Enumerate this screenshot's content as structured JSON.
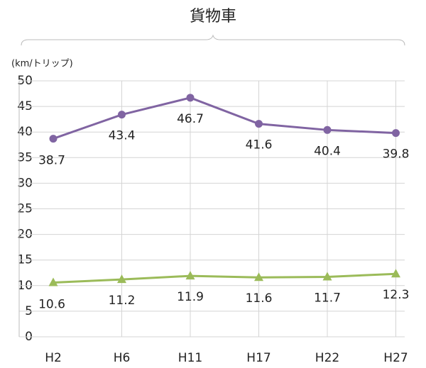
{
  "chart_data": {
    "type": "line",
    "title": "貨物車",
    "y_label": "(km/トリップ)",
    "categories": [
      "H2",
      "H6",
      "H11",
      "H17",
      "H22",
      "H27"
    ],
    "series": [
      {
        "color": "#8064a2",
        "marker": "circle",
        "values": [
          38.7,
          43.4,
          46.7,
          41.6,
          40.4,
          39.8
        ]
      },
      {
        "color": "#9bbb59",
        "marker": "triangle",
        "values": [
          10.6,
          11.2,
          11.9,
          11.6,
          11.7,
          12.3
        ]
      }
    ],
    "ylim": [
      0,
      50
    ],
    "yticks": [
      0,
      5,
      10,
      15,
      20,
      25,
      30,
      35,
      40,
      45,
      50
    ],
    "grid": true
  }
}
